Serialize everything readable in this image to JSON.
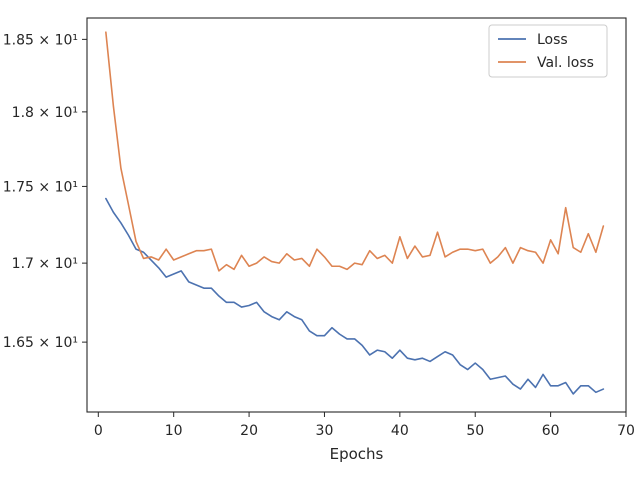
{
  "chart_data": {
    "type": "line",
    "title": "",
    "xlabel": "Epochs",
    "ylabel": "",
    "xlim": [
      -1.5,
      70
    ],
    "ylim": [
      16.07,
      18.65
    ],
    "yscale": "log",
    "grid": false,
    "legend_placement": "top-right",
    "xticks": [
      0,
      10,
      20,
      30,
      40,
      50,
      60,
      70
    ],
    "xtick_labels": [
      "0",
      "10",
      "20",
      "30",
      "40",
      "50",
      "60",
      "70"
    ],
    "yticks": [
      16.5,
      17.0,
      17.5,
      18.0,
      18.5
    ],
    "ytick_labels": [
      "1.65 × 10¹",
      "1.7 × 10¹",
      "1.75 × 10¹",
      "1.8 × 10¹",
      "1.85 × 10¹"
    ],
    "x": [
      1,
      2,
      3,
      4,
      5,
      6,
      7,
      8,
      9,
      10,
      11,
      12,
      13,
      14,
      15,
      16,
      17,
      18,
      19,
      20,
      21,
      22,
      23,
      24,
      25,
      26,
      27,
      28,
      29,
      30,
      31,
      32,
      33,
      34,
      35,
      36,
      37,
      38,
      39,
      40,
      41,
      42,
      43,
      44,
      45,
      46,
      47,
      48,
      49,
      50,
      51,
      52,
      53,
      54,
      55,
      56,
      57,
      58,
      59,
      60,
      61,
      62,
      63,
      64,
      65,
      66,
      67
    ],
    "series": [
      {
        "name": "Loss",
        "color": "#4c72b0",
        "values": [
          17.42,
          17.33,
          17.26,
          17.18,
          17.09,
          17.07,
          17.02,
          16.97,
          16.91,
          16.93,
          16.95,
          16.88,
          16.86,
          16.84,
          16.84,
          16.79,
          16.75,
          16.75,
          16.72,
          16.73,
          16.75,
          16.69,
          16.66,
          16.64,
          16.69,
          16.66,
          16.64,
          16.57,
          16.54,
          16.54,
          16.59,
          16.55,
          16.52,
          16.52,
          16.48,
          16.42,
          16.45,
          16.44,
          16.4,
          16.45,
          16.4,
          16.39,
          16.4,
          16.38,
          16.41,
          16.44,
          16.42,
          16.36,
          16.33,
          16.37,
          16.33,
          16.27,
          16.28,
          16.29,
          16.24,
          16.21,
          16.27,
          16.22,
          16.3,
          16.23,
          16.23,
          16.25,
          16.18,
          16.23,
          16.23,
          16.19,
          16.21
        ]
      },
      {
        "name": "Val. loss",
        "color": "#dd8452",
        "values": [
          18.55,
          18.04,
          17.62,
          17.38,
          17.14,
          17.03,
          17.04,
          17.02,
          17.09,
          17.02,
          17.04,
          17.06,
          17.08,
          17.08,
          17.09,
          16.95,
          16.99,
          16.96,
          17.05,
          16.98,
          17.0,
          17.04,
          17.01,
          17.0,
          17.06,
          17.02,
          17.03,
          16.98,
          17.09,
          17.04,
          16.98,
          16.98,
          16.96,
          17.0,
          16.99,
          17.08,
          17.03,
          17.05,
          17.0,
          17.17,
          17.03,
          17.11,
          17.04,
          17.05,
          17.2,
          17.04,
          17.07,
          17.09,
          17.09,
          17.08,
          17.09,
          17.0,
          17.04,
          17.1,
          17.0,
          17.1,
          17.08,
          17.07,
          17.0,
          17.15,
          17.06,
          17.36,
          17.1,
          17.07,
          17.19,
          17.07,
          17.24
        ]
      }
    ]
  }
}
